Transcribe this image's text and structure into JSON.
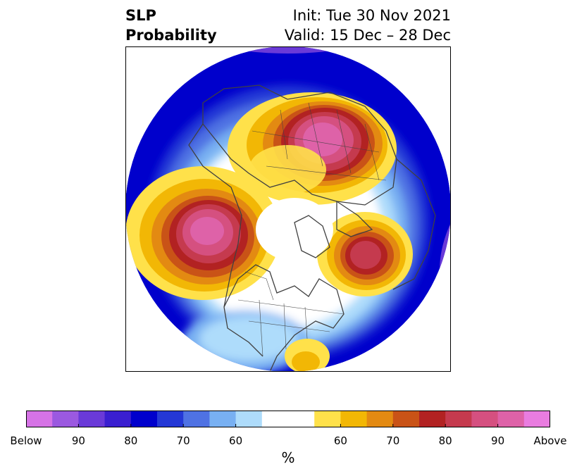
{
  "title": {
    "left_line1": "SLP",
    "left_line2": "Probability",
    "right_line1": "Init: Tue 30 Nov 2021",
    "right_line2": "Valid: 15 Dec – 28 Dec"
  },
  "colorbar": {
    "colors": [
      "#d673e6",
      "#9b59e0",
      "#6a3ad8",
      "#3a1fd0",
      "#0000cc",
      "#2438d6",
      "#4f72e3",
      "#78b0f2",
      "#aedcfb",
      "#ffffff",
      "#ffffff",
      "#ffe14a",
      "#f2b705",
      "#e38a12",
      "#c95317",
      "#b22222",
      "#c53a4e",
      "#d55080",
      "#de62a8",
      "#e97ce0"
    ],
    "labels": [
      {
        "text": "Below",
        "boundary": 0
      },
      {
        "text": "90",
        "boundary": 2
      },
      {
        "text": "80",
        "boundary": 4
      },
      {
        "text": "70",
        "boundary": 6
      },
      {
        "text": "60",
        "boundary": 8
      },
      {
        "text": "60",
        "boundary": 12
      },
      {
        "text": "70",
        "boundary": 14
      },
      {
        "text": "80",
        "boundary": 16
      },
      {
        "text": "90",
        "boundary": 18
      },
      {
        "text": "Above",
        "boundary": 20
      }
    ],
    "unit": "%"
  },
  "map": {
    "region": "Northern Hemisphere polar stereographic",
    "anomalies": [
      {
        "location": "Gulf of Alaska / North Pacific",
        "sign": "above",
        "peak_probability": 90
      },
      {
        "location": "Northern Siberia / Barents–Kara",
        "sign": "above",
        "peak_probability": 90
      },
      {
        "location": "North Atlantic",
        "sign": "above",
        "peak_probability": 80
      },
      {
        "location": "Subtropical Atlantic",
        "sign": "above",
        "peak_probability": 60
      },
      {
        "location": "Pacific / Bering periphery",
        "sign": "below",
        "peak_probability": 90
      },
      {
        "location": "Eurasia periphery",
        "sign": "below",
        "peak_probability": 90
      },
      {
        "location": "North America",
        "sign": "below",
        "peak_probability": 60
      }
    ]
  }
}
